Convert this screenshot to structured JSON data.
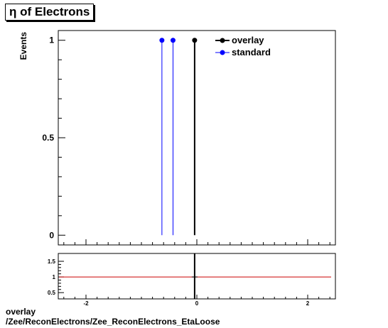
{
  "title": "η of Electrons",
  "caption": {
    "line1": "overlay",
    "line2": "/Zee/ReconElectrons/Zee_ReconElectrons_EtaLoose"
  },
  "colors": {
    "overlay": "#000000",
    "standard": "#0000ff",
    "ratio_line": "#cc0000"
  },
  "chart_data": [
    {
      "type": "scatter",
      "title": "η of Electrons",
      "xlabel": "",
      "ylabel": "Events",
      "xlim": [
        -2.5,
        2.5
      ],
      "ylim": [
        -0.05,
        1.05
      ],
      "y_ticks": [
        0,
        0.5,
        1
      ],
      "y_tick_labels": [
        "0",
        "0.5",
        "1"
      ],
      "legend_position": "top-right",
      "series": [
        {
          "name": "overlay",
          "x": [
            -0.04
          ],
          "y": [
            1
          ],
          "color": "#000000"
        },
        {
          "name": "standard",
          "x": [
            -0.63,
            -0.43
          ],
          "y": [
            1,
            1
          ],
          "color": "#0000ff"
        }
      ]
    },
    {
      "type": "line",
      "title": "",
      "xlabel": "",
      "ylabel": "",
      "xlim": [
        -2.5,
        2.5
      ],
      "ylim": [
        0.3,
        1.75
      ],
      "x_ticks": [
        -2,
        0,
        2
      ],
      "x_tick_labels": [
        "-2",
        "0",
        "2"
      ],
      "y_ticks": [
        0.5,
        1,
        1.5
      ],
      "y_tick_labels": [
        "0.5",
        "1",
        "1.5"
      ],
      "reference_line": 1,
      "series": [
        {
          "x": [
            -0.04
          ],
          "y": [
            1
          ],
          "color": "#000000"
        }
      ]
    }
  ]
}
